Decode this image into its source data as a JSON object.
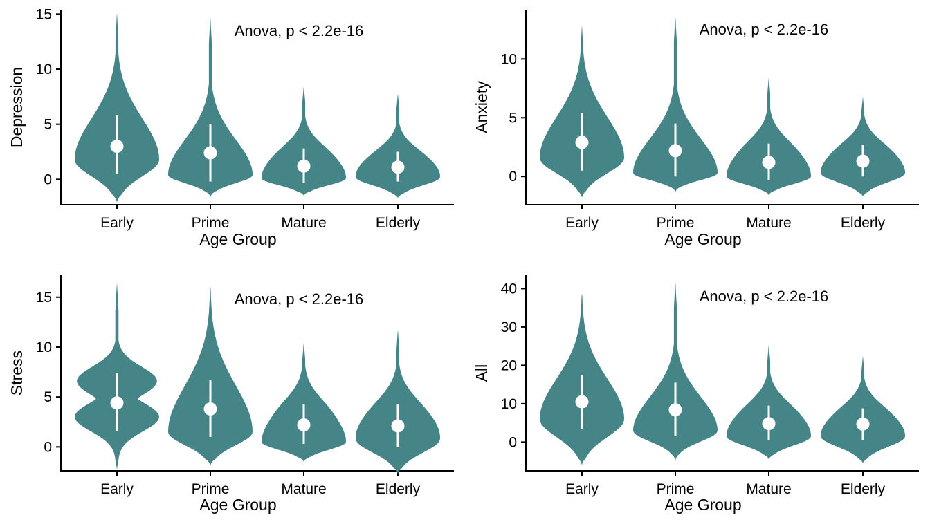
{
  "chart_data": [
    {
      "type": "violin",
      "ylabel": "Depression",
      "xlabel": "Age Group",
      "annotation": "Anova, p < 2.2e-16",
      "categories": [
        "Early",
        "Prime",
        "Mature",
        "Elderly"
      ],
      "ylim": [
        -2.3,
        15.4
      ],
      "yticks": [
        0,
        5,
        10,
        15
      ],
      "fill_color": "#468587",
      "summary_color": "#ffffff",
      "violins": [
        {
          "category": "Early",
          "min": -2.1,
          "max": 15.2,
          "mean": 3.0,
          "lower": 0.5,
          "upper": 5.8,
          "peak": 1.8,
          "shape": "broad"
        },
        {
          "category": "Prime",
          "min": -1.7,
          "max": 14.8,
          "mean": 2.4,
          "lower": -0.2,
          "upper": 5.0,
          "peak": 0.4,
          "shape": "skewed"
        },
        {
          "category": "Mature",
          "min": -1.5,
          "max": 8.5,
          "mean": 1.2,
          "lower": -0.3,
          "upper": 2.8,
          "peak": 0.1,
          "shape": "flat"
        },
        {
          "category": "Elderly",
          "min": -1.7,
          "max": 7.8,
          "mean": 1.1,
          "lower": -0.2,
          "upper": 2.5,
          "peak": 0.2,
          "shape": "flat"
        }
      ]
    },
    {
      "type": "violin",
      "ylabel": "Anxiety",
      "xlabel": "Age Group",
      "annotation": "Anova, p < 2.2e-16",
      "categories": [
        "Early",
        "Prime",
        "Mature",
        "Elderly"
      ],
      "ylim": [
        -2.4,
        14.2
      ],
      "yticks": [
        0,
        5,
        10
      ],
      "fill_color": "#468587",
      "summary_color": "#ffffff",
      "violins": [
        {
          "category": "Early",
          "min": -1.8,
          "max": 12.9,
          "mean": 2.9,
          "lower": 0.5,
          "upper": 5.4,
          "peak": 1.6,
          "shape": "broad"
        },
        {
          "category": "Prime",
          "min": -1.4,
          "max": 13.7,
          "mean": 2.2,
          "lower": 0.0,
          "upper": 4.5,
          "peak": 0.3,
          "shape": "skewed"
        },
        {
          "category": "Mature",
          "min": -1.6,
          "max": 8.5,
          "mean": 1.2,
          "lower": -0.3,
          "upper": 2.8,
          "peak": 0.0,
          "shape": "flat"
        },
        {
          "category": "Elderly",
          "min": -1.7,
          "max": 6.8,
          "mean": 1.3,
          "lower": 0.0,
          "upper": 2.7,
          "peak": 0.3,
          "shape": "flat"
        }
      ]
    },
    {
      "type": "violin",
      "ylabel": "Stress",
      "xlabel": "Age Group",
      "annotation": "Anova, p < 2.2e-16",
      "categories": [
        "Early",
        "Prime",
        "Mature",
        "Elderly"
      ],
      "ylim": [
        -2.4,
        17.2
      ],
      "yticks": [
        0,
        5,
        10,
        15
      ],
      "fill_color": "#468587",
      "summary_color": "#ffffff",
      "violins": [
        {
          "category": "Early",
          "min": -2.3,
          "max": 16.5,
          "mean": 4.4,
          "lower": 1.6,
          "upper": 7.4,
          "peak": 3.0,
          "shape": "bimodal"
        },
        {
          "category": "Prime",
          "min": -1.9,
          "max": 16.1,
          "mean": 3.8,
          "lower": 1.0,
          "upper": 6.7,
          "peak": 1.5,
          "shape": "broad"
        },
        {
          "category": "Mature",
          "min": -1.5,
          "max": 10.5,
          "mean": 2.2,
          "lower": 0.3,
          "upper": 4.3,
          "peak": 0.5,
          "shape": "flat"
        },
        {
          "category": "Elderly",
          "min": -2.7,
          "max": 11.8,
          "mean": 2.1,
          "lower": 0.0,
          "upper": 4.3,
          "peak": 0.8,
          "shape": "flat"
        }
      ]
    },
    {
      "type": "violin",
      "ylabel": "All",
      "xlabel": "Age Group",
      "annotation": "Anova, p < 2.2e-16",
      "categories": [
        "Early",
        "Prime",
        "Mature",
        "Elderly"
      ],
      "ylim": [
        -7.5,
        43.5
      ],
      "yticks": [
        0,
        10,
        20,
        30,
        40
      ],
      "fill_color": "#468587",
      "summary_color": "#ffffff",
      "violins": [
        {
          "category": "Early",
          "min": -6.0,
          "max": 38.8,
          "mean": 10.5,
          "lower": 3.5,
          "upper": 17.5,
          "peak": 6.0,
          "shape": "broad"
        },
        {
          "category": "Prime",
          "min": -5.0,
          "max": 42.0,
          "mean": 8.4,
          "lower": 1.5,
          "upper": 15.5,
          "peak": 3.0,
          "shape": "skewed"
        },
        {
          "category": "Mature",
          "min": -4.5,
          "max": 25.5,
          "mean": 4.8,
          "lower": 0.5,
          "upper": 9.5,
          "peak": 1.5,
          "shape": "flat"
        },
        {
          "category": "Elderly",
          "min": -5.5,
          "max": 22.5,
          "mean": 4.7,
          "lower": 0.5,
          "upper": 8.8,
          "peak": 1.5,
          "shape": "flat"
        }
      ]
    }
  ]
}
